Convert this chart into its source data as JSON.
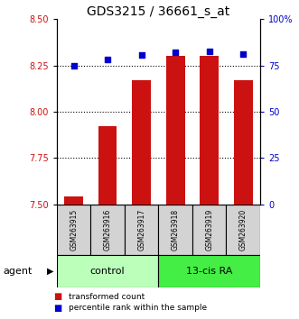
{
  "title": "GDS3215 / 36661_s_at",
  "samples": [
    "GSM263915",
    "GSM263916",
    "GSM263917",
    "GSM263918",
    "GSM263919",
    "GSM263920"
  ],
  "bar_values": [
    7.54,
    7.92,
    8.17,
    8.3,
    8.3,
    8.17
  ],
  "percentile_values": [
    75,
    78,
    80.5,
    82,
    82.5,
    81
  ],
  "ylim_left": [
    7.5,
    8.5
  ],
  "ylim_right": [
    0,
    100
  ],
  "yticks_left": [
    7.5,
    7.75,
    8.0,
    8.25,
    8.5
  ],
  "yticks_right": [
    0,
    25,
    50,
    75,
    100
  ],
  "ytick_labels_right": [
    "0",
    "25",
    "50",
    "75",
    "100%"
  ],
  "bar_color": "#cc1111",
  "dot_color": "#0000cc",
  "bar_width": 0.55,
  "group_labels": [
    "control",
    "13-cis RA"
  ],
  "group_colors": [
    "#bbffbb",
    "#44ee44"
  ],
  "group_boundaries": [
    0,
    3,
    6
  ],
  "agent_label": "agent",
  "legend_bar_label": "transformed count",
  "legend_dot_label": "percentile rank within the sample",
  "title_fontsize": 10,
  "tick_fontsize": 7,
  "sample_fontsize": 5.5,
  "group_fontsize": 8,
  "legend_fontsize": 6.5,
  "bg_color": "#ffffff"
}
